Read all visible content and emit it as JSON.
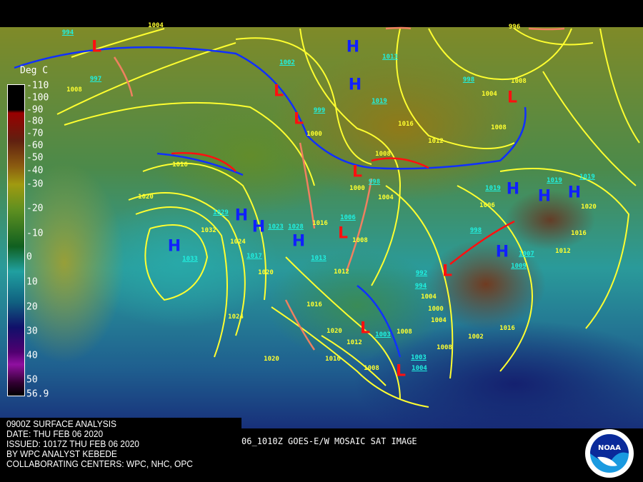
{
  "map_title": "0900Z SURFACE ANALYSIS",
  "info_lines": [
    "0900Z SURFACE ANALYSIS",
    "DATE: THU FEB 06 2020",
    "ISSUED: 1017Z THU FEB 06 2020",
    "BY WPC ANALYST KEBEDE",
    "COLLABORATING CENTERS: WPC, NHC, OPC"
  ],
  "satellite_label": "06_1010Z GOES-E/W MOSAIC SAT IMAGE",
  "logo": "NOAA",
  "colorbar": {
    "unit": "Deg C",
    "ticks": [
      "-110",
      "-100",
      "-90",
      "-80",
      "-70",
      "-60",
      "-50",
      "-40",
      "-30",
      "-20",
      "-10",
      "0",
      "10",
      "20",
      "30",
      "40",
      "50",
      "56.9"
    ]
  },
  "colors": {
    "isobar": "#ffff30",
    "high": "#1020ff",
    "low": "#ff1010",
    "cold_front": "#1030ff",
    "warm_front": "#ff1010",
    "trough": "#f08060"
  },
  "pressure_centers": {
    "highs": [
      "H",
      "H",
      "H",
      "H",
      "H",
      "H",
      "H",
      "H",
      "H",
      "H"
    ],
    "lows": [
      "L",
      "L",
      "L",
      "L",
      "L",
      "L",
      "L",
      "L",
      "L"
    ]
  },
  "isobar_labels": [
    "1004",
    "996",
    "1008",
    "1016",
    "1020",
    "1032",
    "1024",
    "1020",
    "1016",
    "1024",
    "1020",
    "1012",
    "1016",
    "1008",
    "1020",
    "1000",
    "1000",
    "1016",
    "1012",
    "1008",
    "1004",
    "1016",
    "1008",
    "1012",
    "1004",
    "1008",
    "1008",
    "1006",
    "1020",
    "1016",
    "1012",
    "1004",
    "1000",
    "1004",
    "1008",
    "1002",
    "1016",
    "1008"
  ],
  "center_labels": [
    "994",
    "997",
    "1002",
    "1013",
    "998",
    "1019",
    "999",
    "998",
    "1029",
    "1023",
    "1028",
    "1006",
    "1017",
    "1013",
    "1033",
    "998",
    "1007",
    "1009",
    "992",
    "994",
    "1019",
    "1019",
    "1019",
    "1003",
    "1003",
    "1004"
  ]
}
